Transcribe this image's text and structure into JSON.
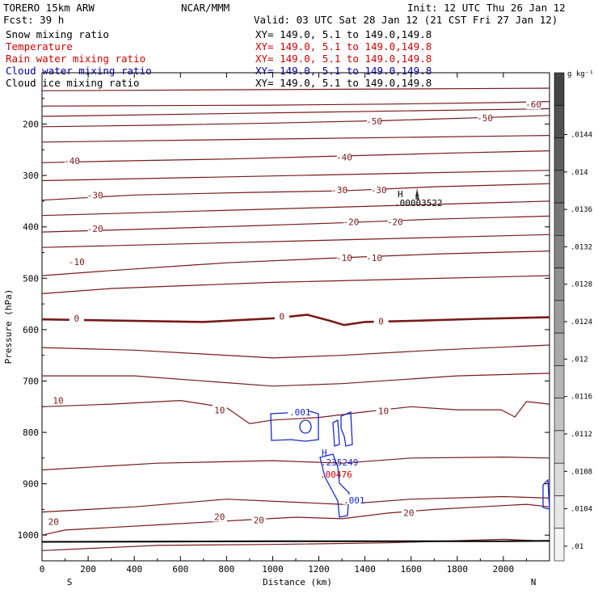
{
  "header": {
    "model": "TORERO  15km ARW",
    "center": "NCAR/MMM",
    "init": "Init: 12 UTC Thu 26 Jan 12",
    "fcst": "Fcst:   39 h",
    "valid": "Valid: 03 UTC Sat 28 Jan 12 (21 CST Fri 27 Jan 12)"
  },
  "legend": [
    {
      "name": "Snow mixing ratio",
      "xy": "XY= 149.0,  5.1 to 149.0,149.8",
      "color": "#000000"
    },
    {
      "name": "Temperature",
      "xy": "XY= 149.0,  5.1 to 149.0,149.8",
      "color": "#cc0000"
    },
    {
      "name": "Rain water mixing ratio",
      "xy": "XY= 149.0,  5.1 to 149.0,149.8",
      "color": "#cc0000"
    },
    {
      "name": "Cloud water mixing ratio",
      "xy": "XY= 149.0,  5.1 to 149.0,149.8",
      "color": "#0000aa"
    },
    {
      "name": "Cloud ice mixing ratio",
      "xy": "XY= 149.0,  5.1 to 149.0,149.8",
      "color": "#000000"
    }
  ],
  "chart_data": {
    "type": "line",
    "xlabel": "Distance (km)",
    "ylabel": "Pressure (hPa)",
    "xlim": [
      0,
      2200
    ],
    "ylim": [
      1050,
      100
    ],
    "x_ticks": [
      0,
      200,
      400,
      600,
      800,
      1000,
      1200,
      1400,
      1600,
      1800,
      2000
    ],
    "y_ticks": [
      1000,
      900,
      800,
      700,
      600,
      500,
      400,
      300,
      200
    ],
    "left_end_label": "S",
    "right_end_label": "N",
    "temperature_isotherms": [
      {
        "t": -60,
        "points": [
          [
            0,
            165
          ],
          [
            500,
            164
          ],
          [
            1000,
            163
          ],
          [
            1500,
            161
          ],
          [
            2000,
            158
          ],
          [
            2200,
            156
          ]
        ],
        "labels": [
          [
            2130,
            163
          ]
        ]
      },
      {
        "t": -50,
        "points": [
          [
            0,
            205
          ],
          [
            500,
            202
          ],
          [
            1000,
            198
          ],
          [
            1500,
            193
          ],
          [
            2000,
            186
          ],
          [
            2200,
            183
          ]
        ],
        "labels": [
          [
            1440,
            196
          ],
          [
            1920,
            190
          ]
        ]
      },
      {
        "t": -40,
        "points": [
          [
            0,
            275
          ],
          [
            300,
            272
          ],
          [
            800,
            268
          ],
          [
            1300,
            262
          ],
          [
            1800,
            256
          ],
          [
            2200,
            252
          ]
        ],
        "labels": [
          [
            130,
            273
          ],
          [
            1310,
            266
          ]
        ]
      },
      {
        "t": -30,
        "points": [
          [
            0,
            348
          ],
          [
            400,
            338
          ],
          [
            900,
            333
          ],
          [
            1300,
            330
          ],
          [
            1700,
            322
          ],
          [
            2200,
            316
          ]
        ],
        "labels": [
          [
            230,
            340
          ],
          [
            1290,
            330
          ],
          [
            1460,
            330
          ]
        ]
      },
      {
        "t": -20,
        "points": [
          [
            0,
            410
          ],
          [
            400,
            405
          ],
          [
            900,
            398
          ],
          [
            1300,
            392
          ],
          [
            1700,
            385
          ],
          [
            2200,
            379
          ]
        ],
        "labels": [
          [
            230,
            405
          ],
          [
            1340,
            392
          ],
          [
            1530,
            392
          ]
        ]
      },
      {
        "t": -10,
        "points": [
          [
            0,
            495
          ],
          [
            300,
            485
          ],
          [
            800,
            470
          ],
          [
            1300,
            460
          ],
          [
            1700,
            453
          ],
          [
            2200,
            447
          ]
        ],
        "labels": [
          [
            150,
            470
          ],
          [
            1310,
            462
          ],
          [
            1440,
            462
          ]
        ]
      },
      {
        "t": 0,
        "points": [
          [
            0,
            580
          ],
          [
            400,
            583
          ],
          [
            700,
            585
          ],
          [
            1000,
            578
          ],
          [
            1150,
            571
          ],
          [
            1250,
            583
          ],
          [
            1310,
            591
          ],
          [
            1400,
            585
          ],
          [
            1600,
            583
          ],
          [
            1900,
            579
          ],
          [
            2200,
            576
          ]
        ],
        "labels": [
          [
            150,
            580
          ],
          [
            1040,
            576
          ],
          [
            1470,
            585
          ]
        ]
      },
      {
        "t": 10,
        "points": [
          [
            0,
            750
          ],
          [
            300,
            745
          ],
          [
            600,
            738
          ],
          [
            800,
            752
          ],
          [
            900,
            783
          ],
          [
            1000,
            776
          ],
          [
            1200,
            771
          ],
          [
            1400,
            760
          ],
          [
            1600,
            750
          ],
          [
            1800,
            756
          ],
          [
            1990,
            756
          ],
          [
            2050,
            770
          ],
          [
            2100,
            740
          ],
          [
            2200,
            745
          ]
        ],
        "labels": [
          [
            70,
            739
          ],
          [
            770,
            758
          ],
          [
            1480,
            760
          ]
        ]
      },
      {
        "t": 20,
        "points": [
          [
            0,
            1000
          ],
          [
            100,
            990
          ],
          [
            300,
            985
          ],
          [
            500,
            980
          ],
          [
            700,
            975
          ],
          [
            900,
            970
          ],
          [
            1100,
            965
          ],
          [
            1300,
            968
          ],
          [
            1500,
            957
          ],
          [
            1700,
            950
          ],
          [
            1900,
            945
          ],
          [
            2100,
            940
          ],
          [
            2200,
            945
          ]
        ],
        "labels": [
          [
            50,
            975
          ],
          [
            770,
            966
          ],
          [
            940,
            972
          ],
          [
            1590,
            958
          ]
        ]
      }
    ],
    "extra_isotherms_unlabeled": [
      [
        [
          0,
          135
        ],
        [
          2200,
          130
        ]
      ],
      [
        [
          0,
          185
        ],
        [
          2200,
          170
        ]
      ],
      [
        [
          0,
          235
        ],
        [
          2200,
          222
        ]
      ],
      [
        [
          0,
          310
        ],
        [
          2200,
          290
        ]
      ],
      [
        [
          0,
          378
        ],
        [
          2200,
          350
        ]
      ],
      [
        [
          0,
          440
        ],
        [
          2200,
          415
        ]
      ],
      [
        [
          0,
          530
        ],
        [
          300,
          520
        ],
        [
          1000,
          508
        ],
        [
          2200,
          495
        ]
      ],
      [
        [
          0,
          635
        ],
        [
          400,
          640
        ],
        [
          1000,
          655
        ],
        [
          1300,
          650
        ],
        [
          1700,
          640
        ],
        [
          2200,
          630
        ]
      ],
      [
        [
          0,
          690
        ],
        [
          400,
          690
        ],
        [
          1000,
          710
        ],
        [
          1300,
          705
        ],
        [
          1800,
          690
        ],
        [
          2200,
          685
        ]
      ],
      [
        [
          0,
          873
        ],
        [
          500,
          860
        ],
        [
          1000,
          855
        ],
        [
          1300,
          860
        ],
        [
          1600,
          850
        ],
        [
          2000,
          848
        ],
        [
          2200,
          850
        ]
      ],
      [
        [
          0,
          955
        ],
        [
          400,
          945
        ],
        [
          800,
          930
        ],
        [
          1300,
          940
        ],
        [
          1600,
          930
        ],
        [
          2000,
          925
        ],
        [
          2200,
          928
        ]
      ],
      [
        [
          0,
          1030
        ],
        [
          500,
          1020
        ],
        [
          1000,
          1018
        ],
        [
          1500,
          1015
        ],
        [
          2000,
          1008
        ],
        [
          2200,
          1012
        ]
      ]
    ],
    "terrain_pressure": [
      [
        0,
        1013
      ],
      [
        1000,
        1012
      ],
      [
        2000,
        1012
      ],
      [
        2200,
        1011
      ]
    ],
    "cloud_water_label": ".001",
    "snow_max_label": "H",
    "snow_max_value": ".00003522",
    "rain_value": ".00476",
    "cloud_max_label": "H",
    "cloud_max_value": ".235249",
    "colorbar": {
      "unit": "g kg⁻¹",
      "ticks": [
        ".0144",
        ".014",
        ".0136",
        ".0132",
        ".0128",
        ".0124",
        ".012",
        ".0116",
        ".0112",
        ".0108",
        ".0104",
        ".01"
      ],
      "top_color": "#444444",
      "bottom_color": "#f4f4f4"
    }
  }
}
